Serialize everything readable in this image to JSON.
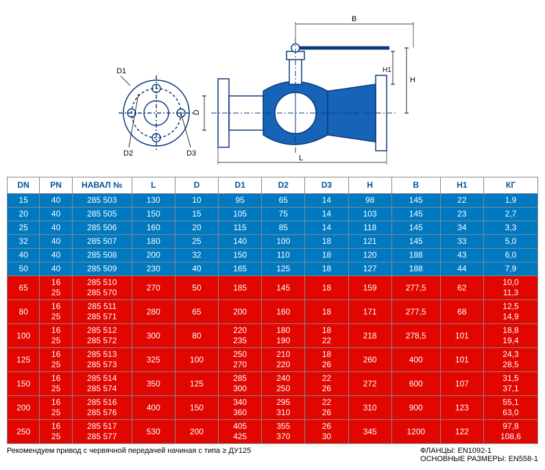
{
  "diagram": {
    "labels": [
      "B",
      "H",
      "H1",
      "L",
      "D",
      "D1",
      "D2",
      "D3"
    ],
    "stroke": "#0a3a7a",
    "fill": "#1763b8",
    "dim_stroke": "#000000"
  },
  "columns": [
    "DN",
    "PN",
    "НАВАЛ №",
    "L",
    "D",
    "D1",
    "D2",
    "D3",
    "H",
    "B",
    "H1",
    "КГ"
  ],
  "rows": [
    {
      "color": "blue",
      "cells": [
        "15",
        "40",
        "285 503",
        "130",
        "10",
        "95",
        "65",
        "14",
        "98",
        "145",
        "22",
        "1,9"
      ]
    },
    {
      "color": "blue",
      "cells": [
        "20",
        "40",
        "285 505",
        "150",
        "15",
        "105",
        "75",
        "14",
        "103",
        "145",
        "23",
        "2,7"
      ]
    },
    {
      "color": "blue",
      "cells": [
        "25",
        "40",
        "285 506",
        "160",
        "20",
        "115",
        "85",
        "14",
        "118",
        "145",
        "34",
        "3,3"
      ]
    },
    {
      "color": "blue",
      "cells": [
        "32",
        "40",
        "285 507",
        "180",
        "25",
        "140",
        "100",
        "18",
        "121",
        "145",
        "33",
        "5,0"
      ]
    },
    {
      "color": "blue",
      "cells": [
        "40",
        "40",
        "285 508",
        "200",
        "32",
        "150",
        "110",
        "18",
        "120",
        "188",
        "43",
        "6,0"
      ]
    },
    {
      "color": "blue",
      "cells": [
        "50",
        "40",
        "285 509",
        "230",
        "40",
        "165",
        "125",
        "18",
        "127",
        "188",
        "44",
        "7,9"
      ]
    },
    {
      "color": "red",
      "cells": [
        "65",
        "16\n25",
        "285 510\n285 570",
        "270",
        "50",
        "185",
        "145",
        "18",
        "159",
        "277,5",
        "62",
        "10,0\n11,3"
      ]
    },
    {
      "color": "red",
      "cells": [
        "80",
        "16\n25",
        "285 511\n285 571",
        "280",
        "65",
        "200",
        "160",
        "18",
        "171",
        "277,5",
        "68",
        "12,5\n14,9"
      ]
    },
    {
      "color": "red",
      "cells": [
        "100",
        "16\n25",
        "285 512\n285 572",
        "300",
        "80",
        "220\n235",
        "180\n190",
        "18\n22",
        "218",
        "278,5",
        "101",
        "18,8\n19,4"
      ]
    },
    {
      "color": "red",
      "cells": [
        "125",
        "16\n25",
        "285 513\n285 573",
        "325",
        "100",
        "250\n270",
        "210\n220",
        "18\n26",
        "260",
        "400",
        "101",
        "24,3\n28,5"
      ]
    },
    {
      "color": "red",
      "cells": [
        "150",
        "16\n25",
        "285 514\n285 574",
        "350",
        "125",
        "285\n300",
        "240\n250",
        "22\n26",
        "272",
        "600",
        "107",
        "31,5\n37,1"
      ]
    },
    {
      "color": "red",
      "cells": [
        "200",
        "16\n25",
        "285 516\n285 576",
        "400",
        "150",
        "340\n360",
        "295\n310",
        "22\n26",
        "310",
        "900",
        "123",
        "55,1\n63,0"
      ]
    },
    {
      "color": "red",
      "cells": [
        "250",
        "16\n25",
        "285 517\n285 577",
        "530",
        "200",
        "405\n425",
        "355\n370",
        "26\n30",
        "345",
        "1200",
        "122",
        "97,8\n108,6"
      ]
    }
  ],
  "footer": {
    "left": "Рекомендуем привод с червячной передачей начиная с типа ≥ ДУ125",
    "right1": "ФЛАНЦЫ: EN1092-1",
    "right2": "ОСНОВНЫЕ РАЗМЕРЫ: EN558-1"
  },
  "col_widths_pct": [
    6,
    6,
    11,
    8,
    8,
    8,
    8,
    8,
    8,
    9,
    8,
    10
  ]
}
